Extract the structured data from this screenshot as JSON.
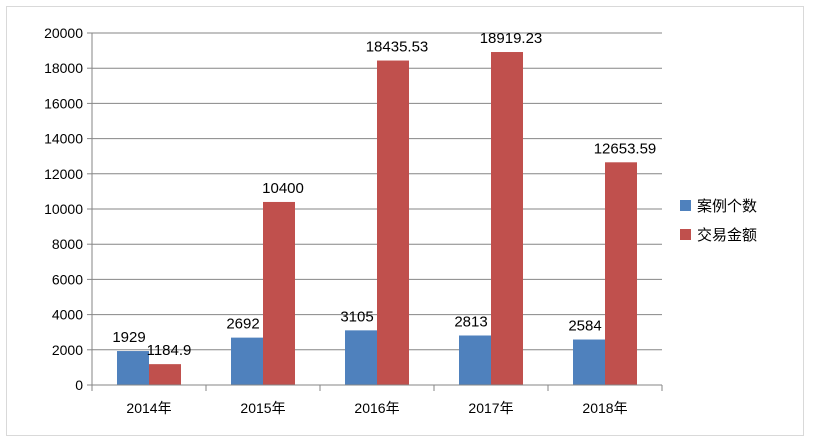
{
  "chart_data": {
    "type": "bar",
    "title": "",
    "xlabel": "",
    "ylabel": "",
    "categories": [
      "2014年",
      "2015年",
      "2016年",
      "2017年",
      "2018年"
    ],
    "series": [
      {
        "name": "案例个数",
        "color": "#4f81bd",
        "values": [
          1929,
          2692,
          3105,
          2813,
          2584
        ],
        "labels": [
          "1929",
          "2692",
          "3105",
          "2813",
          "2584"
        ]
      },
      {
        "name": "交易金额",
        "color": "#c0504d",
        "values": [
          1184.9,
          10400,
          18435.53,
          18919.23,
          12653.59
        ],
        "labels": [
          "1184.9",
          "10400",
          "18435.53",
          "18919.23",
          "12653.59"
        ]
      }
    ],
    "ylim": [
      0,
      20000
    ],
    "yticks": [
      "0",
      "2000",
      "4000",
      "6000",
      "8000",
      "10000",
      "12000",
      "14000",
      "16000",
      "18000",
      "20000"
    ],
    "grid": true,
    "legend_position": "right"
  }
}
